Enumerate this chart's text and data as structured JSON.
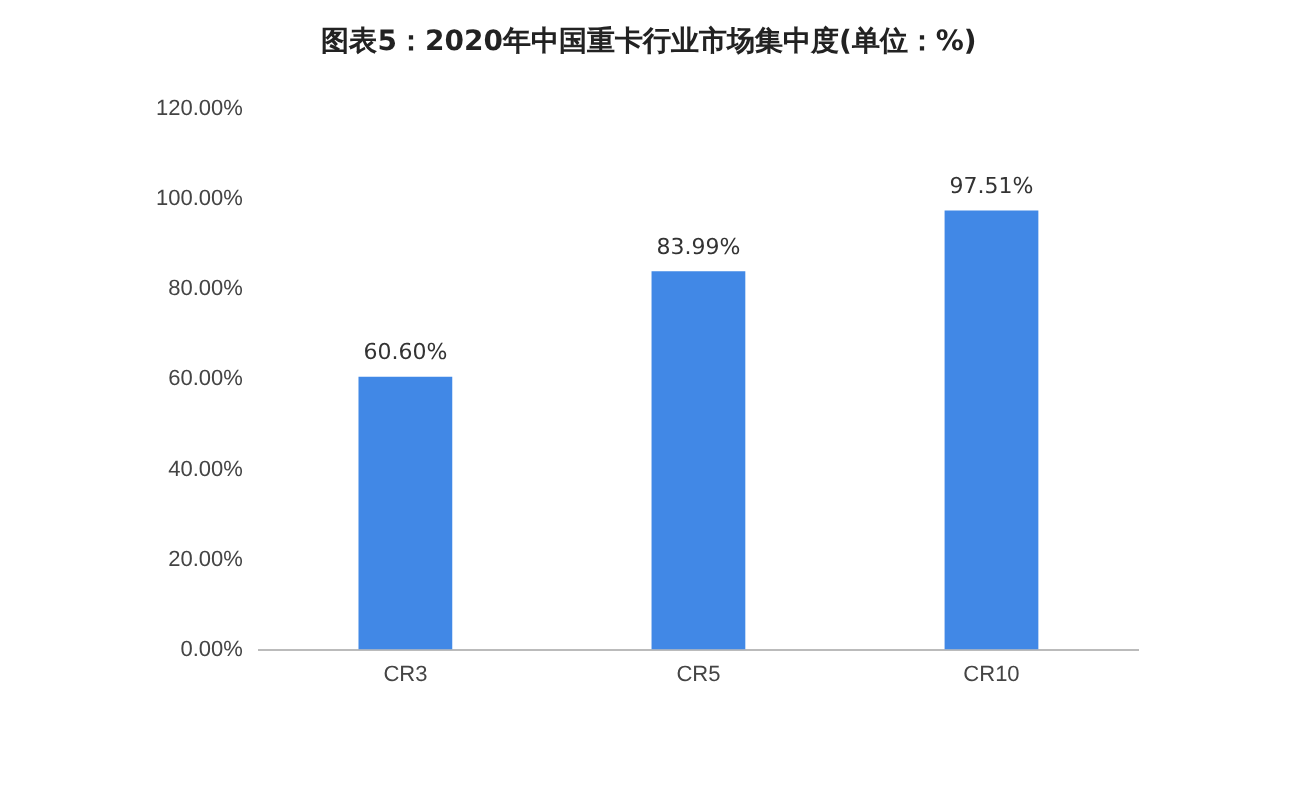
{
  "chart_data": {
    "type": "bar",
    "title": "图表5：2020年中国重卡行业市场集中度(单位：%)",
    "categories": [
      "CR3",
      "CR5",
      "CR10"
    ],
    "values": [
      60.6,
      83.99,
      97.51
    ],
    "value_labels": [
      "60.60%",
      "83.99%",
      "97.51%"
    ],
    "color": "#4188e6",
    "ylim": [
      0,
      120
    ],
    "yticks": [
      {
        "value": 0,
        "label": "0.00%"
      },
      {
        "value": 20,
        "label": "20.00%"
      },
      {
        "value": 40,
        "label": "40.00%"
      },
      {
        "value": 60,
        "label": "60.00%"
      },
      {
        "value": 80,
        "label": "80.00%"
      },
      {
        "value": 100,
        "label": "100.00%"
      },
      {
        "value": 120,
        "label": "120.00%"
      }
    ],
    "grid": false,
    "legend": false
  }
}
